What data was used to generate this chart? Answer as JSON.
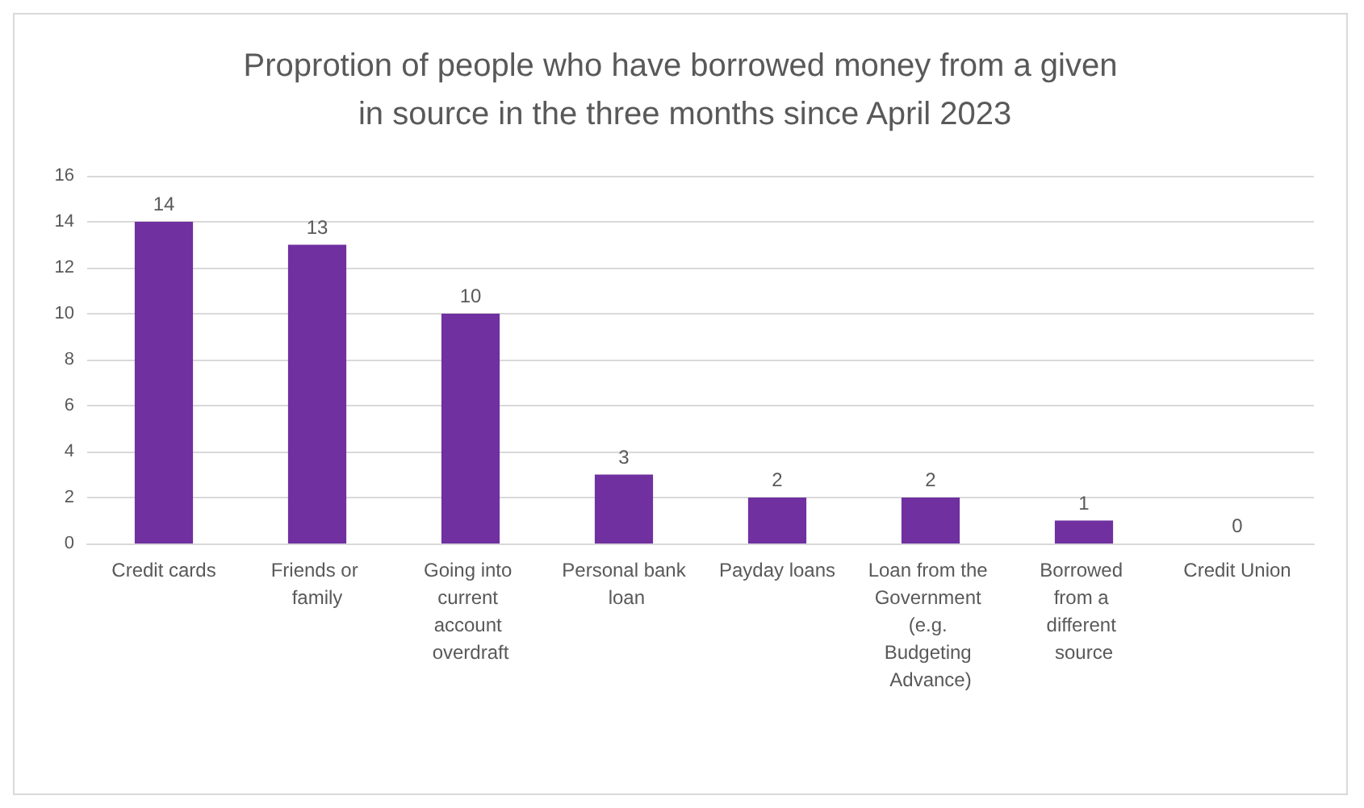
{
  "chart_data": {
    "type": "bar",
    "title": "Proprotion of people who have borrowed money from a given in source in the three months since April 2023",
    "categories": [
      "Credit cards",
      "Friends or family",
      "Going into current account overdraft",
      "Personal bank loan",
      "Payday loans",
      "Loan from the Government (e.g. Budgeting Advance)",
      "Borrowed from a different source",
      "Credit Union"
    ],
    "values": [
      14,
      13,
      10,
      3,
      2,
      2,
      1,
      0
    ],
    "color": "#7030a0",
    "ylim": [
      0,
      16
    ],
    "yticks": [
      0,
      2,
      4,
      6,
      8,
      10,
      12,
      14,
      16
    ],
    "grid": "y",
    "data_labels": true
  }
}
